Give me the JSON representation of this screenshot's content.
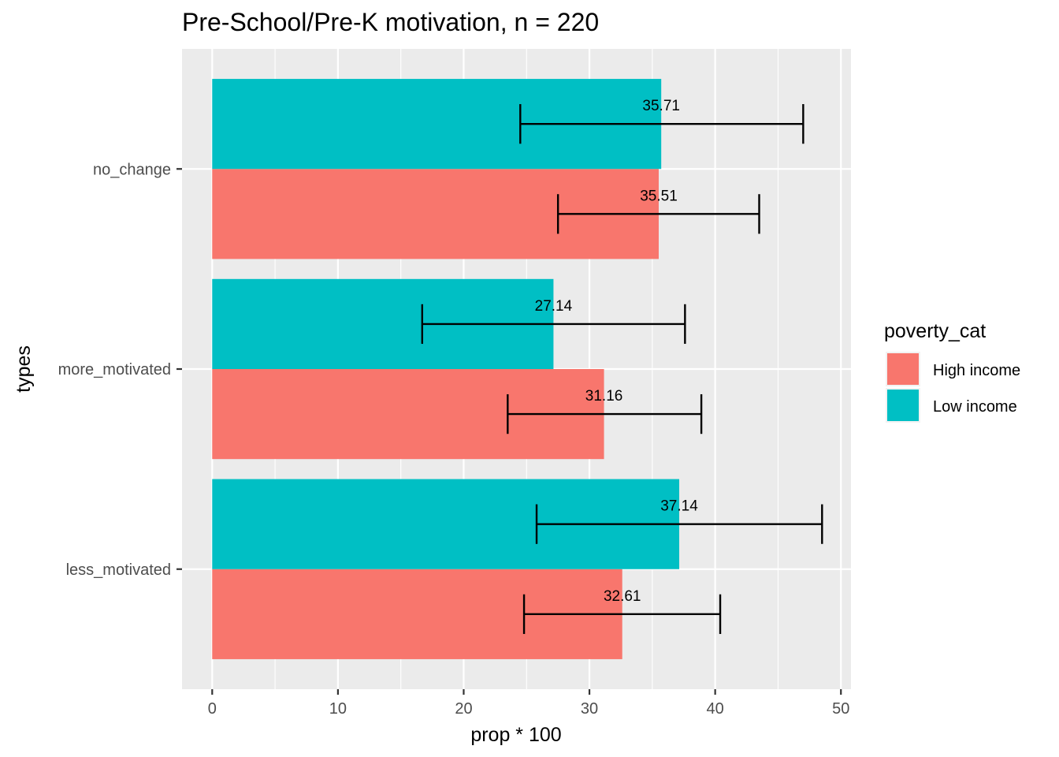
{
  "chart_data": {
    "type": "bar",
    "orientation": "horizontal",
    "title": "Pre-School/Pre-K motivation, n = 220",
    "xlabel": "prop * 100",
    "ylabel": "types",
    "xlim": [
      -2.4,
      50.8
    ],
    "x_ticks": [
      0,
      10,
      20,
      30,
      40,
      50
    ],
    "grid": true,
    "categories": [
      "no_change",
      "more_motivated",
      "less_motivated"
    ],
    "series": [
      {
        "name": "High income",
        "color": "#F8766D",
        "values": [
          35.51,
          31.16,
          32.61
        ],
        "labels": [
          "35.51",
          "31.16",
          "32.61"
        ],
        "error_low": [
          27.5,
          23.5,
          24.8
        ],
        "error_high": [
          43.5,
          38.9,
          40.4
        ]
      },
      {
        "name": "Low income",
        "color": "#00BFC4",
        "values": [
          35.71,
          27.14,
          37.14
        ],
        "labels": [
          "35.71",
          "27.14",
          "37.14"
        ],
        "error_low": [
          24.5,
          16.7,
          25.8
        ],
        "error_high": [
          47.0,
          37.6,
          48.5
        ]
      }
    ],
    "legend": {
      "title": "poverty_cat",
      "position": "right"
    }
  }
}
